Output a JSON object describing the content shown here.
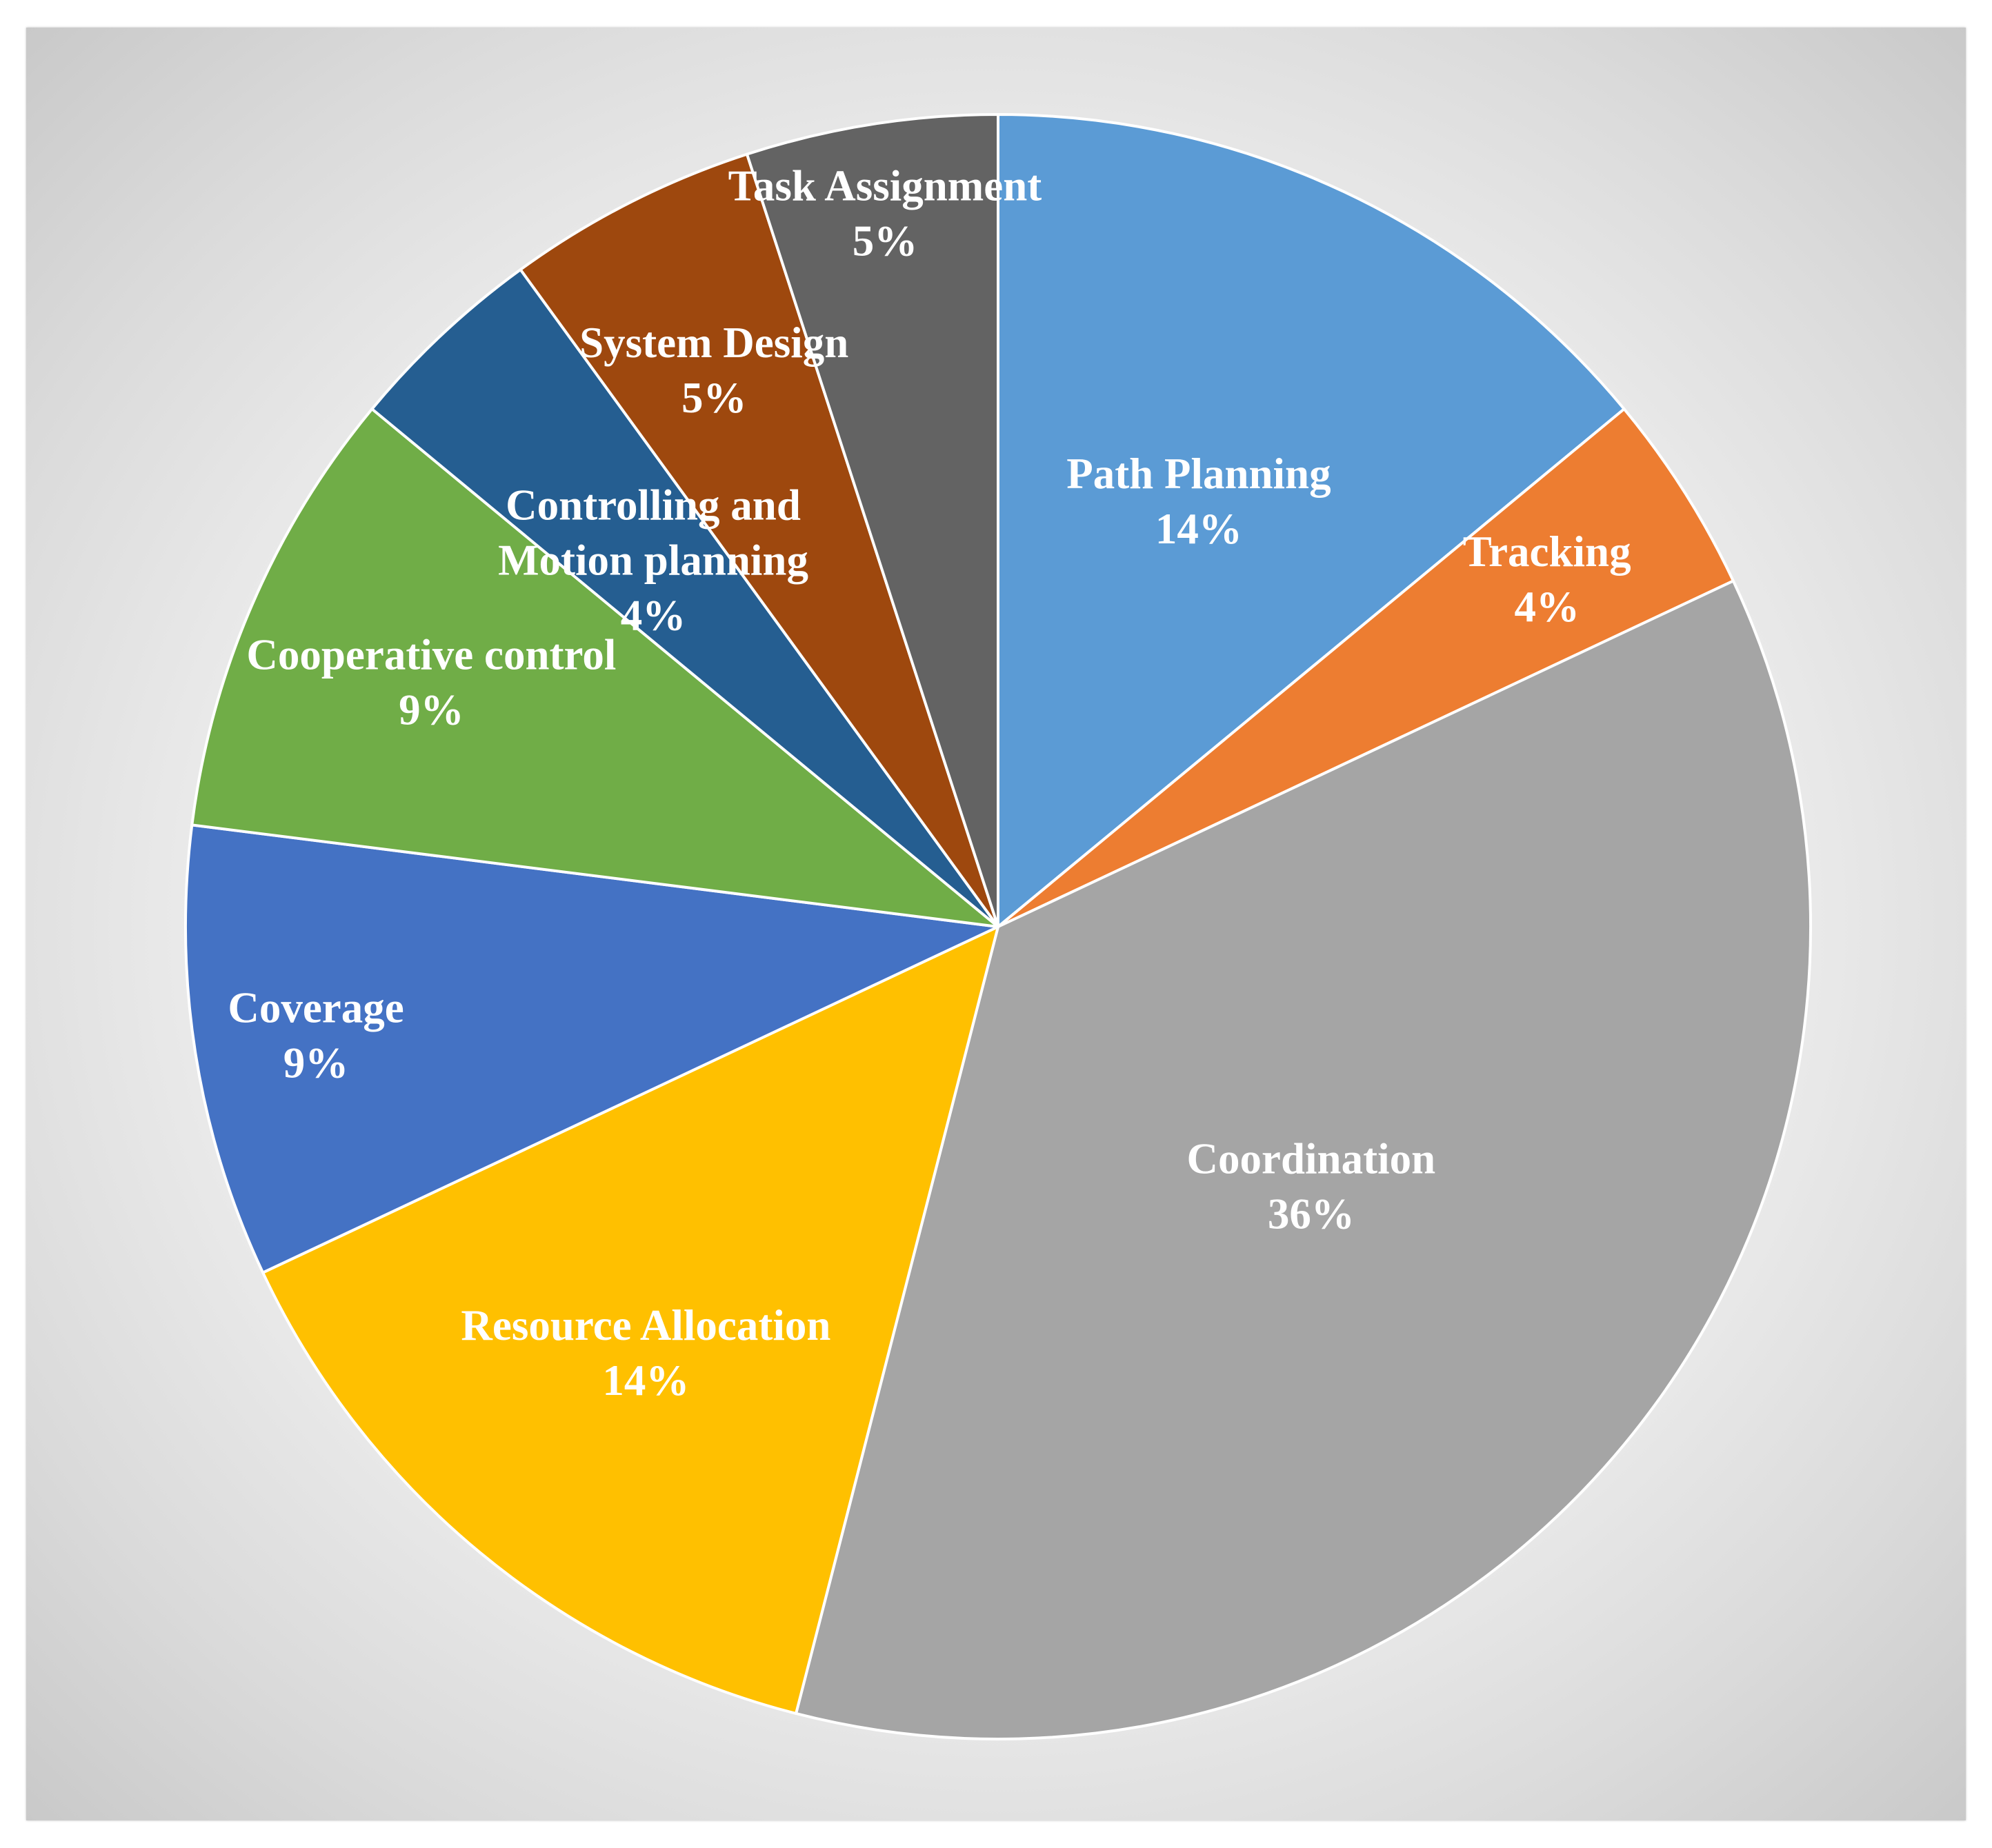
{
  "chart_data": {
    "type": "pie",
    "title": "",
    "start_angle_deg": 0,
    "direction": "clockwise",
    "slices": [
      {
        "label": "Path Planning",
        "value": 14,
        "value_label": "14%",
        "color": "#5B9BD5"
      },
      {
        "label": "Tracking",
        "value": 4,
        "value_label": "4%",
        "color": "#ED7D31"
      },
      {
        "label": "Coordination",
        "value": 36,
        "value_label": "36%",
        "color": "#A5A5A5"
      },
      {
        "label": "Resource Allocation",
        "value": 14,
        "value_label": "14%",
        "color": "#FFC000"
      },
      {
        "label": "Coverage",
        "value": 9,
        "value_label": "9%",
        "color": "#4472C4"
      },
      {
        "label": "Cooperative control",
        "value": 9,
        "value_label": "9%",
        "color": "#70AD47"
      },
      {
        "label": [
          "Controlling and",
          "Motion planning"
        ],
        "value": 4,
        "value_label": "4%",
        "color": "#255E91"
      },
      {
        "label": "System Design",
        "value": 5,
        "value_label": "5%",
        "color": "#9E480E"
      },
      {
        "label": "Task Assignment",
        "value": 5,
        "value_label": "5%",
        "color": "#636363"
      }
    ]
  }
}
